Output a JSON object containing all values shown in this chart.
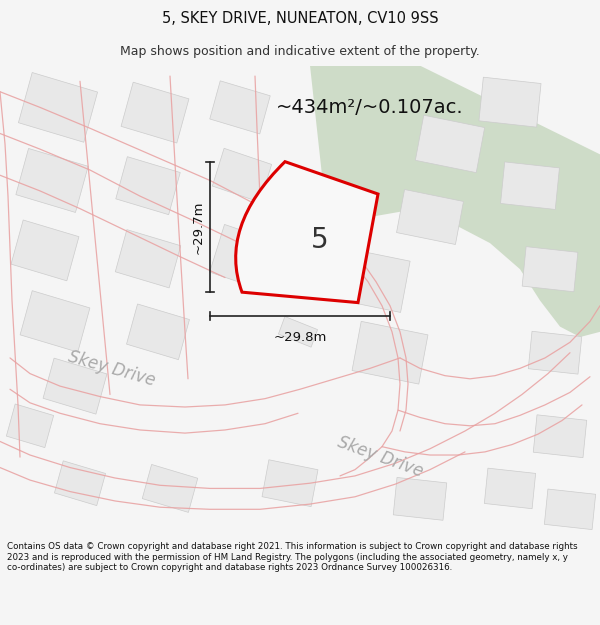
{
  "title_line1": "5, SKEY DRIVE, NUNEATON, CV10 9SS",
  "title_line2": "Map shows position and indicative extent of the property.",
  "area_label": "~434m²/~0.107ac.",
  "dim_vertical": "~29.7m",
  "dim_horizontal": "~29.8m",
  "property_number": "5",
  "road_label1": "Skey Drive",
  "road_label2": "Skey Drive",
  "footer_text": "Contains OS data © Crown copyright and database right 2021. This information is subject to Crown copyright and database rights 2023 and is reproduced with the permission of HM Land Registry. The polygons (including the associated geometry, namely x, y co-ordinates) are subject to Crown copyright and database rights 2023 Ordnance Survey 100026316.",
  "bg_color": "#f5f5f5",
  "map_bg": "#ffffff",
  "green_color": "#c8d8c0",
  "bldg_fill": "#e0e0e0",
  "bldg_edge": "#cccccc",
  "pink_line": "#e8a0a0",
  "property_edge": "#dd0000",
  "dim_color": "#222222"
}
